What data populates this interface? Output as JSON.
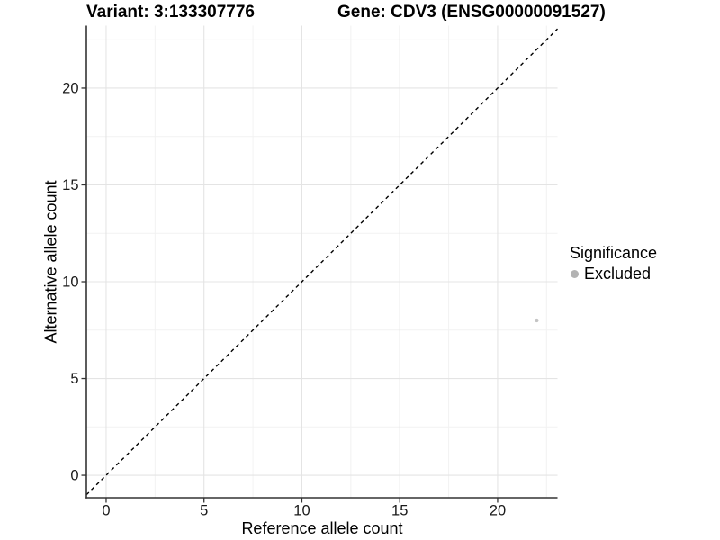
{
  "titles": {
    "variant": "Variant: 3:133307776",
    "gene": "Gene: CDV3 (ENSG00000091527)"
  },
  "chart_data": {
    "type": "scatter",
    "title_left": "Variant: 3:133307776",
    "title_right": "Gene: CDV3 (ENSG00000091527)",
    "xlabel": "Reference allele count",
    "ylabel": "Alternative allele count",
    "xlim": [
      -1.01,
      23.06
    ],
    "ylim": [
      -1.16,
      23.23
    ],
    "xticks": [
      0,
      5,
      10,
      15,
      20
    ],
    "yticks": [
      0,
      5,
      10,
      15,
      20
    ],
    "xminor": [
      2.5,
      7.5,
      12.5,
      17.5,
      22.5
    ],
    "yminor": [
      2.5,
      7.5,
      12.5,
      17.5,
      22.5
    ],
    "grid": {
      "major": true,
      "minor": true
    },
    "points": [
      {
        "x": 22,
        "y": 8,
        "significance": "Excluded"
      }
    ],
    "identity_line": {
      "slope": 1,
      "intercept": 0,
      "style": "dashed"
    },
    "legend": {
      "title": "Significance",
      "position": "right",
      "items": [
        {
          "label": "Excluded",
          "color": "#b3b3b3"
        }
      ]
    },
    "colors": {
      "point": "#c4c4c4",
      "grid_major": "#e4e4e4",
      "grid_minor": "#f2f2f2",
      "axis": "#333333",
      "tick_text": "#1a1a1a",
      "abline": "#000000"
    }
  }
}
